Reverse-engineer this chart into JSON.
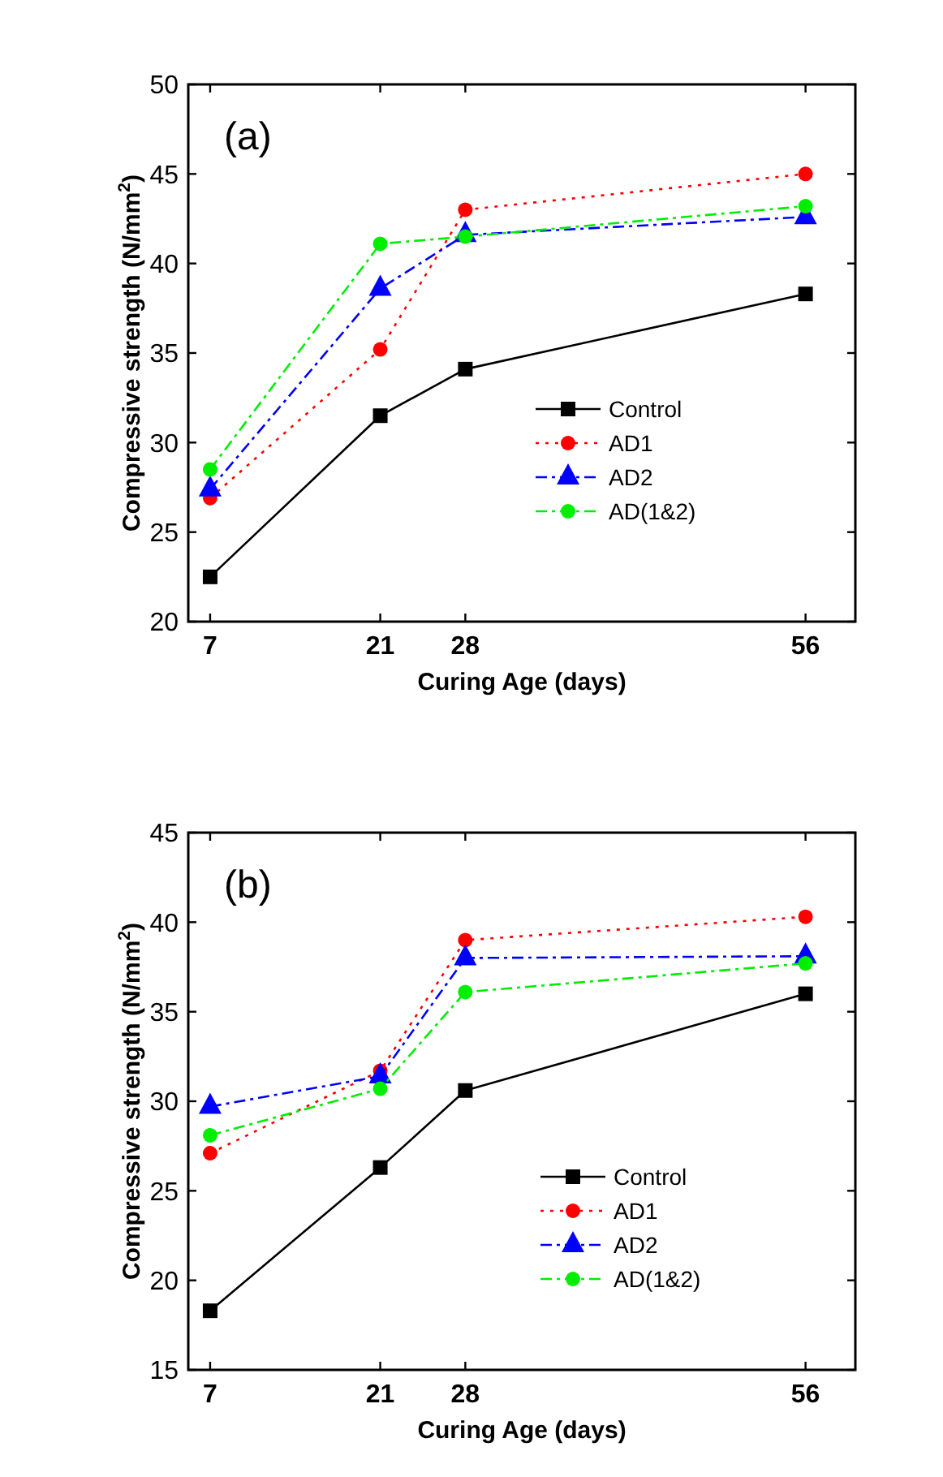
{
  "chart_data": [
    {
      "type": "line",
      "annotations": [
        "(a)"
      ],
      "xlabel": "Curing Age (days)",
      "ylabel": "Compressive strength (N/mm$^{2}$)",
      "x": [
        7,
        21,
        28,
        56
      ],
      "xlim": [
        5.2,
        60.1
      ],
      "xticks": [
        7,
        21,
        28,
        56
      ],
      "ylim": [
        20,
        50
      ],
      "yticks": [
        20,
        25,
        30,
        35,
        40,
        45,
        50
      ],
      "grid": false,
      "legend": "right",
      "series": [
        {
          "name": "Control",
          "color": "#000000",
          "marker": "square",
          "line_style": "solid",
          "values": [
            22.5,
            31.5,
            34.1,
            38.3
          ]
        },
        {
          "name": "AD1",
          "color": "#ff0000",
          "marker": "circle",
          "line_style": "dotted",
          "values": [
            26.9,
            35.2,
            43.0,
            45.0
          ]
        },
        {
          "name": "AD2",
          "color": "#0000ff",
          "marker": "triangle",
          "line_style": "dashed",
          "values": [
            27.4,
            38.6,
            41.6,
            42.6
          ]
        },
        {
          "name": "AD(1&2)",
          "color": "#00ee00",
          "marker": "circle",
          "line_style": "dashed",
          "values": [
            28.5,
            41.1,
            41.5,
            43.2
          ]
        }
      ]
    },
    {
      "type": "line",
      "annotations": [
        "(b)"
      ],
      "xlabel": "Curing Age (days)",
      "ylabel": "Compressive strength (N/mm$^{2}$)",
      "x": [
        7,
        21,
        28,
        56
      ],
      "xlim": [
        5.2,
        60.1
      ],
      "xticks": [
        7,
        21,
        28,
        56
      ],
      "ylim": [
        15,
        45
      ],
      "yticks": [
        15,
        20,
        25,
        30,
        35,
        40,
        45
      ],
      "grid": false,
      "legend": "bottom right",
      "series": [
        {
          "name": "Control",
          "color": "#000000",
          "marker": "square",
          "line_style": "solid",
          "values": [
            18.3,
            26.3,
            30.6,
            36.0
          ]
        },
        {
          "name": "AD1",
          "color": "#ff0000",
          "marker": "circle",
          "line_style": "dotted",
          "values": [
            27.1,
            31.7,
            39.0,
            40.3
          ]
        },
        {
          "name": "AD2",
          "color": "#0000ff",
          "marker": "triangle",
          "line_style": "dashed",
          "values": [
            29.7,
            31.4,
            38.0,
            38.1
          ]
        },
        {
          "name": "AD(1&2)",
          "color": "#00ee00",
          "marker": "circle",
          "line_style": "dashed",
          "values": [
            28.1,
            30.7,
            36.1,
            37.7
          ]
        }
      ]
    }
  ]
}
